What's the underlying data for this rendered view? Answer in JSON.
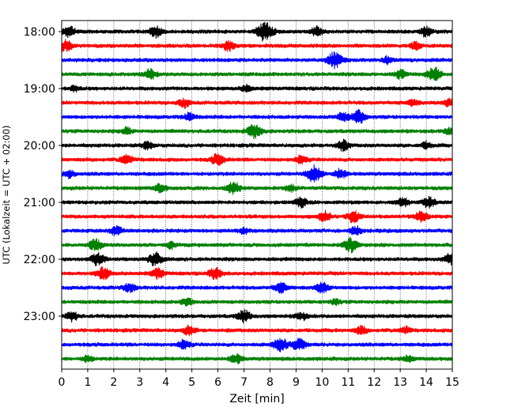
{
  "chart_data": {
    "type": "line",
    "plot_style": "helicorder",
    "title": "",
    "xlabel": "Zeit  [min]",
    "ylabel": "UTC (Lokalzeit = UTC + 02:00)",
    "xlim": [
      0,
      15
    ],
    "x_ticks": [
      "0",
      "1",
      "2",
      "3",
      "4",
      "5",
      "6",
      "7",
      "8",
      "9",
      "10",
      "11",
      "12",
      "13",
      "14",
      "15"
    ],
    "y_tick_labels": [
      {
        "row": 0,
        "label": "18:00"
      },
      {
        "row": 4,
        "label": "19:00"
      },
      {
        "row": 8,
        "label": "20:00"
      },
      {
        "row": 12,
        "label": "21:00"
      },
      {
        "row": 16,
        "label": "22:00"
      },
      {
        "row": 20,
        "label": "23:00"
      }
    ],
    "row_interval_min": 15,
    "grid": "vertical dotted at each minute",
    "trace_colors": [
      "#000000",
      "#ff0000",
      "#0000ff",
      "#008000"
    ],
    "rows": [
      {
        "start": "18:00",
        "events": [
          {
            "t": 0.3,
            "a": 0.55
          },
          {
            "t": 3.6,
            "a": 0.6
          },
          {
            "t": 7.8,
            "a": 1.0
          },
          {
            "t": 9.8,
            "a": 0.5
          },
          {
            "t": 14.0,
            "a": 0.55
          }
        ]
      },
      {
        "start": "18:15",
        "events": [
          {
            "t": 0.15,
            "a": 0.6
          },
          {
            "t": 6.4,
            "a": 0.5
          },
          {
            "t": 13.6,
            "a": 0.4
          }
        ]
      },
      {
        "start": "18:30",
        "events": [
          {
            "t": 10.5,
            "a": 0.85
          },
          {
            "t": 12.5,
            "a": 0.35
          }
        ]
      },
      {
        "start": "18:45",
        "events": [
          {
            "t": 3.4,
            "a": 0.55
          },
          {
            "t": 14.3,
            "a": 0.75
          },
          {
            "t": 13.0,
            "a": 0.45
          }
        ]
      },
      {
        "start": "19:00",
        "events": [
          {
            "t": 7.1,
            "a": 0.35
          },
          {
            "t": 0.5,
            "a": 0.3
          }
        ]
      },
      {
        "start": "19:15",
        "events": [
          {
            "t": 4.7,
            "a": 0.45
          },
          {
            "t": 13.5,
            "a": 0.35
          },
          {
            "t": 14.9,
            "a": 0.4
          }
        ]
      },
      {
        "start": "19:30",
        "events": [
          {
            "t": 4.9,
            "a": 0.45
          },
          {
            "t": 10.8,
            "a": 0.5
          },
          {
            "t": 11.4,
            "a": 0.7
          }
        ]
      },
      {
        "start": "19:45",
        "events": [
          {
            "t": 7.4,
            "a": 0.75
          },
          {
            "t": 2.5,
            "a": 0.35
          },
          {
            "t": 14.9,
            "a": 0.4
          }
        ]
      },
      {
        "start": "20:00",
        "events": [
          {
            "t": 3.3,
            "a": 0.4
          },
          {
            "t": 10.8,
            "a": 0.55
          },
          {
            "t": 14.0,
            "a": 0.35
          }
        ]
      },
      {
        "start": "20:15",
        "events": [
          {
            "t": 2.5,
            "a": 0.55
          },
          {
            "t": 6.0,
            "a": 0.6
          },
          {
            "t": 9.2,
            "a": 0.45
          }
        ]
      },
      {
        "start": "20:30",
        "events": [
          {
            "t": 9.7,
            "a": 0.85
          },
          {
            "t": 10.7,
            "a": 0.5
          },
          {
            "t": 0.3,
            "a": 0.4
          }
        ]
      },
      {
        "start": "20:45",
        "events": [
          {
            "t": 6.6,
            "a": 0.65
          },
          {
            "t": 3.8,
            "a": 0.45
          },
          {
            "t": 8.8,
            "a": 0.35
          }
        ]
      },
      {
        "start": "21:00",
        "events": [
          {
            "t": 9.2,
            "a": 0.5
          },
          {
            "t": 13.1,
            "a": 0.45
          },
          {
            "t": 14.1,
            "a": 0.55
          }
        ]
      },
      {
        "start": "21:15",
        "events": [
          {
            "t": 11.2,
            "a": 0.6
          },
          {
            "t": 10.1,
            "a": 0.55
          },
          {
            "t": 13.8,
            "a": 0.55
          }
        ]
      },
      {
        "start": "21:30",
        "events": [
          {
            "t": 2.1,
            "a": 0.5
          },
          {
            "t": 11.3,
            "a": 0.45
          },
          {
            "t": 7.0,
            "a": 0.3
          }
        ]
      },
      {
        "start": "21:45",
        "events": [
          {
            "t": 1.3,
            "a": 0.6
          },
          {
            "t": 11.1,
            "a": 0.7
          },
          {
            "t": 4.2,
            "a": 0.35
          }
        ]
      },
      {
        "start": "22:00",
        "events": [
          {
            "t": 1.4,
            "a": 0.7
          },
          {
            "t": 3.6,
            "a": 0.7
          },
          {
            "t": 14.9,
            "a": 0.5
          }
        ]
      },
      {
        "start": "22:15",
        "events": [
          {
            "t": 1.6,
            "a": 0.65
          },
          {
            "t": 3.7,
            "a": 0.55
          },
          {
            "t": 5.9,
            "a": 0.6
          }
        ]
      },
      {
        "start": "22:30",
        "events": [
          {
            "t": 2.6,
            "a": 0.5
          },
          {
            "t": 8.4,
            "a": 0.55
          },
          {
            "t": 10.0,
            "a": 0.55
          }
        ]
      },
      {
        "start": "22:45",
        "events": [
          {
            "t": 4.8,
            "a": 0.4
          },
          {
            "t": 10.5,
            "a": 0.3
          }
        ]
      },
      {
        "start": "23:00",
        "events": [
          {
            "t": 0.4,
            "a": 0.5
          },
          {
            "t": 7.0,
            "a": 0.65
          },
          {
            "t": 9.2,
            "a": 0.45
          }
        ]
      },
      {
        "start": "23:15",
        "events": [
          {
            "t": 4.9,
            "a": 0.5
          },
          {
            "t": 11.5,
            "a": 0.45
          },
          {
            "t": 13.2,
            "a": 0.4
          }
        ]
      },
      {
        "start": "23:30",
        "events": [
          {
            "t": 8.4,
            "a": 0.75
          },
          {
            "t": 9.1,
            "a": 0.65
          },
          {
            "t": 4.7,
            "a": 0.5
          }
        ]
      },
      {
        "start": "23:45",
        "events": [
          {
            "t": 6.7,
            "a": 0.5
          },
          {
            "t": 1.0,
            "a": 0.35
          },
          {
            "t": 13.3,
            "a": 0.3
          }
        ]
      }
    ]
  }
}
